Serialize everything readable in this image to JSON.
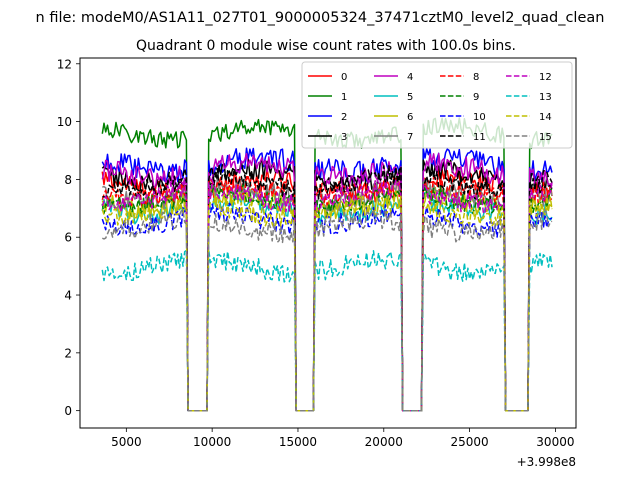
{
  "chart_data": {
    "type": "line",
    "suptitle": "n file: modeM0/AS1A11_027T01_9000005324_37471cztM0_level2_quad_clean",
    "title": "Quadrant 0 module wise count rates with 100.0s bins.",
    "xlabel": "",
    "ylabel": "",
    "x_offset_label": "+3.998e8",
    "xlim": [
      2300,
      31200
    ],
    "ylim": [
      -0.6,
      12.2
    ],
    "xticks": [
      5000,
      10000,
      15000,
      20000,
      25000,
      30000
    ],
    "xtick_labels": [
      "5000",
      "10000",
      "15000",
      "20000",
      "25000",
      "30000"
    ],
    "yticks": [
      0,
      2,
      4,
      6,
      8,
      10,
      12
    ],
    "ytick_labels": [
      "0",
      "2",
      "4",
      "6",
      "8",
      "10",
      "12"
    ],
    "grid": false,
    "legend_position": "top-right",
    "legend_columns": 4,
    "x_start": 3600,
    "x_step": 100,
    "segments": [
      {
        "start": 3600,
        "end": 8500
      },
      {
        "start": 9800,
        "end": 14800
      },
      {
        "start": 16000,
        "end": 21000
      },
      {
        "start": 22300,
        "end": 27000
      },
      {
        "start": 28500,
        "end": 29800
      }
    ],
    "gaps": [
      {
        "drop": 8500,
        "flat_start": 8600,
        "flat_end": 9700,
        "rise": 9800
      },
      {
        "drop": 14800,
        "flat_start": 14900,
        "flat_end": 15900,
        "rise": 16000
      },
      {
        "drop": 21000,
        "flat_start": 21100,
        "flat_end": 22200,
        "rise": 22300
      },
      {
        "drop": 27000,
        "flat_start": 27100,
        "flat_end": 28400,
        "rise": 28500
      }
    ],
    "series": [
      {
        "name": "0",
        "color": "#ff0000",
        "dash": "solid",
        "mean": 7.8,
        "noise": 0.35
      },
      {
        "name": "1",
        "color": "#008000",
        "dash": "solid",
        "mean": 9.6,
        "noise": 0.3
      },
      {
        "name": "2",
        "color": "#0000ff",
        "dash": "solid",
        "mean": 8.5,
        "noise": 0.4
      },
      {
        "name": "3",
        "color": "#000000",
        "dash": "solid",
        "mean": 8.1,
        "noise": 0.35
      },
      {
        "name": "4",
        "color": "#bf00bf",
        "dash": "solid",
        "mean": 8.3,
        "noise": 0.4
      },
      {
        "name": "5",
        "color": "#00bfbf",
        "dash": "solid",
        "mean": 7.0,
        "noise": 0.35
      },
      {
        "name": "6",
        "color": "#bfbf00",
        "dash": "solid",
        "mean": 7.2,
        "noise": 0.35
      },
      {
        "name": "7",
        "color": "#808080",
        "dash": "solid",
        "mean": 7.5,
        "noise": 0.35
      },
      {
        "name": "8",
        "color": "#ff0000",
        "dash": "dashed",
        "mean": 7.6,
        "noise": 0.35
      },
      {
        "name": "9",
        "color": "#008000",
        "dash": "dashed",
        "mean": 7.3,
        "noise": 0.35
      },
      {
        "name": "10",
        "color": "#0000ff",
        "dash": "dashed",
        "mean": 6.6,
        "noise": 0.35
      },
      {
        "name": "11",
        "color": "#000000",
        "dash": "dashed",
        "mean": 7.9,
        "noise": 0.35
      },
      {
        "name": "12",
        "color": "#bf00bf",
        "dash": "dashed",
        "mean": 7.4,
        "noise": 0.35
      },
      {
        "name": "13",
        "color": "#00bfbf",
        "dash": "dashed",
        "mean": 5.0,
        "noise": 0.35
      },
      {
        "name": "14",
        "color": "#bfbf00",
        "dash": "dashed",
        "mean": 6.9,
        "noise": 0.35
      },
      {
        "name": "15",
        "color": "#808080",
        "dash": "dashed",
        "mean": 6.4,
        "noise": 0.35
      }
    ]
  }
}
